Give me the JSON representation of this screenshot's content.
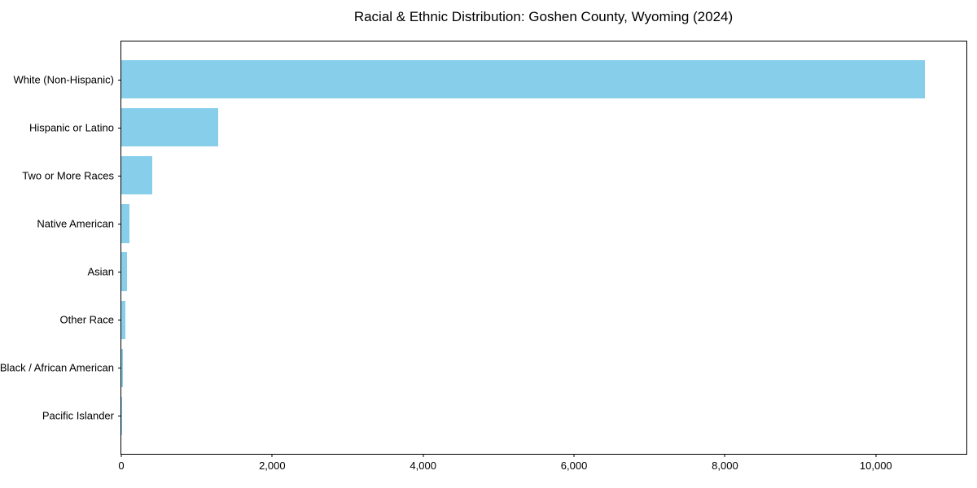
{
  "chart": {
    "title": "Racial & Ethnic Distribution: Goshen County, Wyoming (2024)"
  },
  "chart_data": {
    "type": "bar",
    "orientation": "horizontal",
    "title": "Racial & Ethnic Distribution: Goshen County, Wyoming (2024)",
    "categories": [
      "White (Non-Hispanic)",
      "Hispanic or Latino",
      "Two or More Races",
      "Native American",
      "Asian",
      "Other Race",
      "Black / African American",
      "Pacific Islander"
    ],
    "values": [
      10650,
      1285,
      410,
      105,
      80,
      50,
      25,
      6
    ],
    "xlabel": "",
    "ylabel": "",
    "xlim": [
      0,
      11200
    ],
    "x_ticks": [
      0,
      2000,
      4000,
      6000,
      8000,
      10000
    ],
    "x_tick_labels": [
      "0",
      "2,000",
      "4,000",
      "6,000",
      "8,000",
      "10,000"
    ],
    "bar_color": "#87CEEB",
    "spine_color": "#000000",
    "background": "#FFFFFF",
    "grid": false,
    "legend": null
  }
}
